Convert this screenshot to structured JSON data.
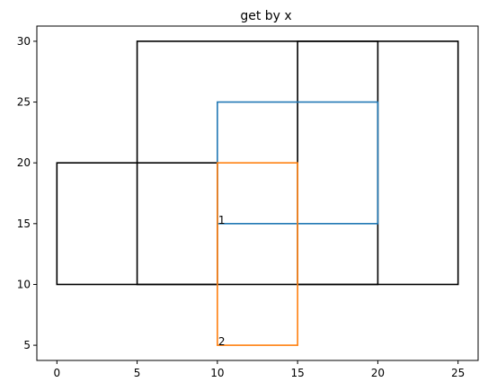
{
  "chart_data": {
    "type": "line",
    "title": "get by x",
    "xlabel": "",
    "ylabel": "",
    "xlim": [
      -1.25,
      26.25
    ],
    "ylim": [
      3.75,
      31.25
    ],
    "x_ticks": [
      0,
      5,
      10,
      15,
      20,
      25
    ],
    "y_ticks": [
      5,
      10,
      15,
      20,
      25,
      30
    ],
    "grid": false,
    "legend": "none",
    "rectangles": [
      {
        "x0": 0,
        "y0": 10,
        "x1": 10,
        "y1": 20,
        "color": "#000000"
      },
      {
        "x0": 5,
        "y0": 10,
        "x1": 20,
        "y1": 30,
        "color": "#000000"
      },
      {
        "x0": 15,
        "y0": 10,
        "x1": 25,
        "y1": 30,
        "color": "#000000"
      },
      {
        "x0": 10,
        "y0": 15,
        "x1": 20,
        "y1": 25,
        "color": "#1f77b4"
      },
      {
        "x0": 10,
        "y0": 5,
        "x1": 15,
        "y1": 20,
        "color": "#ff7f0e"
      }
    ],
    "annotations": [
      {
        "text": "1",
        "x": 10,
        "y": 15
      },
      {
        "text": "2",
        "x": 10,
        "y": 5
      }
    ]
  }
}
